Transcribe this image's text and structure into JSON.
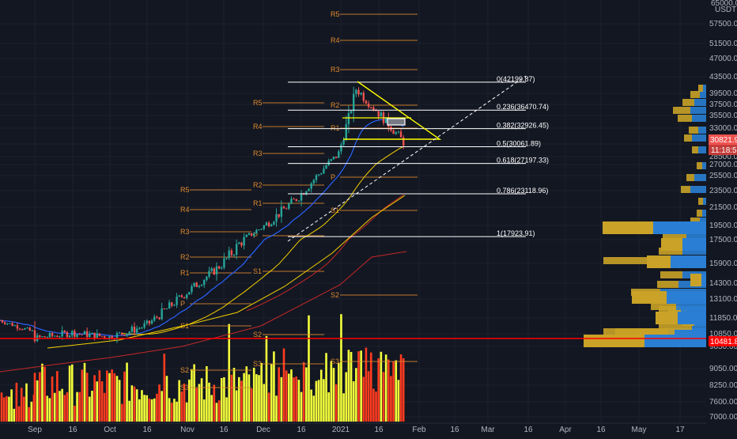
{
  "axis": {
    "top_value": "65000.00",
    "currency": "USDT"
  },
  "price_badges": {
    "last_price": "30821.95",
    "countdown": "11:18:56",
    "hline_price": "10481.85"
  },
  "colors": {
    "background": "#131722",
    "grid": "#1e222d",
    "candle_up": "#26a69a",
    "candle_down": "#ef5350",
    "ema_blue": "#2962ff",
    "ma_yellow": "#f5d000",
    "ma_red": "#c62828",
    "volume_yellow": "#f4ff3a",
    "volume_red": "#ff3b1f",
    "pivot_orange": "#e08a2e",
    "fib_white": "#ffffff",
    "triangle_yellow": "#ffff00",
    "horizontal_red": "#ff0000",
    "vp_blue": "#2a7fd4",
    "vp_gold": "#c9a227"
  },
  "chart_data": {
    "type": "candlestick",
    "symbol_quote": "USDT",
    "y_ticks": [
      "57500.00",
      "51500.00",
      "47000.00",
      "43500.00",
      "39500.00",
      "37500.00",
      "35500.00",
      "33000.00",
      "30500.00",
      "28500.00",
      "27000.00",
      "25500.00",
      "23500.00",
      "21500.00",
      "19500.00",
      "17500.00",
      "15900.00",
      "14300.00",
      "13100.00",
      "11850.00",
      "10850.00",
      "9850.00",
      "9050.00",
      "8250.00",
      "7600.00",
      "7000.00"
    ],
    "x_ticks": [
      "Sep",
      "16",
      "Oct",
      "16",
      "Nov",
      "16",
      "Dec",
      "16",
      "2021",
      "16",
      "Feb",
      "16",
      "Mar",
      "16",
      "Apr",
      "16",
      "May",
      "17"
    ],
    "close_path": [
      [
        "Sep",
        10500
      ],
      [
        "Sep 16",
        10900
      ],
      [
        "Oct",
        10600
      ],
      [
        "Oct 16",
        11400
      ],
      [
        "Nov",
        13600
      ],
      [
        "Nov 16",
        16000
      ],
      [
        "Dec",
        19200
      ],
      [
        "Dec 16",
        22800
      ],
      [
        "2021",
        29000
      ],
      [
        "Jan 8",
        40500
      ],
      [
        "Jan 16",
        36500
      ],
      [
        "Jan 27",
        30800
      ]
    ],
    "fibonacci": [
      {
        "level": "0",
        "price": 42199.87
      },
      {
        "level": "0.236",
        "price": 36470.74
      },
      {
        "level": "0.382",
        "price": 32926.45
      },
      {
        "level": "0.5",
        "price": 30061.89
      },
      {
        "level": "0.618",
        "price": 27197.33
      },
      {
        "level": "0.786",
        "price": 23118.96
      },
      {
        "level": "1",
        "price": 17923.91
      }
    ],
    "pivot_labels": [
      "R5",
      "R4",
      "R3",
      "R2",
      "R1",
      "P",
      "S1",
      "S2",
      "S3"
    ],
    "horizontal_line": 10481.85,
    "last_price": 30821.95
  }
}
